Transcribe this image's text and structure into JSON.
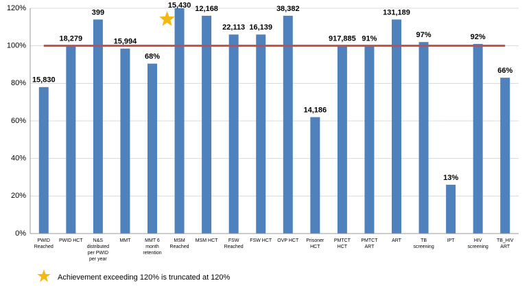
{
  "chart_data": {
    "type": "bar",
    "categories": [
      "PWID Reached",
      "PWID HCT",
      "N&S distributed per PWID per year",
      "MMT",
      "MMT 6 month retention",
      "MSM Reached",
      "MSM HCT",
      "FSW Reached",
      "FSW HCT",
      "OVP HCT",
      "Prisoner HCT",
      "PMTCT HCT",
      "PMTCT ART",
      "ART",
      "TB screening",
      "IPT",
      "HIV screening",
      "TB_HIV ART"
    ],
    "values": [
      78,
      100,
      114,
      98.5,
      90.5,
      120,
      116,
      106,
      106,
      116,
      62,
      100,
      100,
      114,
      102,
      26,
      101,
      83
    ],
    "bar_labels": [
      "15,830",
      "18,279",
      "399",
      "15,994",
      "68%",
      "15,430",
      "12,168",
      "22,113",
      "16,139",
      "38,382",
      "14,186",
      "917,885",
      "91%",
      "131,189",
      "97%",
      "13%",
      "92%",
      "66%"
    ],
    "color": "#4f81bd",
    "target": 100,
    "target_color": "#c0504d",
    "ylim": [
      0,
      120
    ],
    "yticks": [
      {
        "value": 0,
        "label": "0%"
      },
      {
        "value": 20,
        "label": "20%"
      },
      {
        "value": 40,
        "label": "40%"
      },
      {
        "value": 60,
        "label": "60%"
      },
      {
        "value": 80,
        "label": "80%"
      },
      {
        "value": 100,
        "label": "100%"
      },
      {
        "value": 120,
        "label": "120%"
      }
    ],
    "grid": true,
    "legend": "Achievement exceeding 120% is truncated at 120%"
  }
}
